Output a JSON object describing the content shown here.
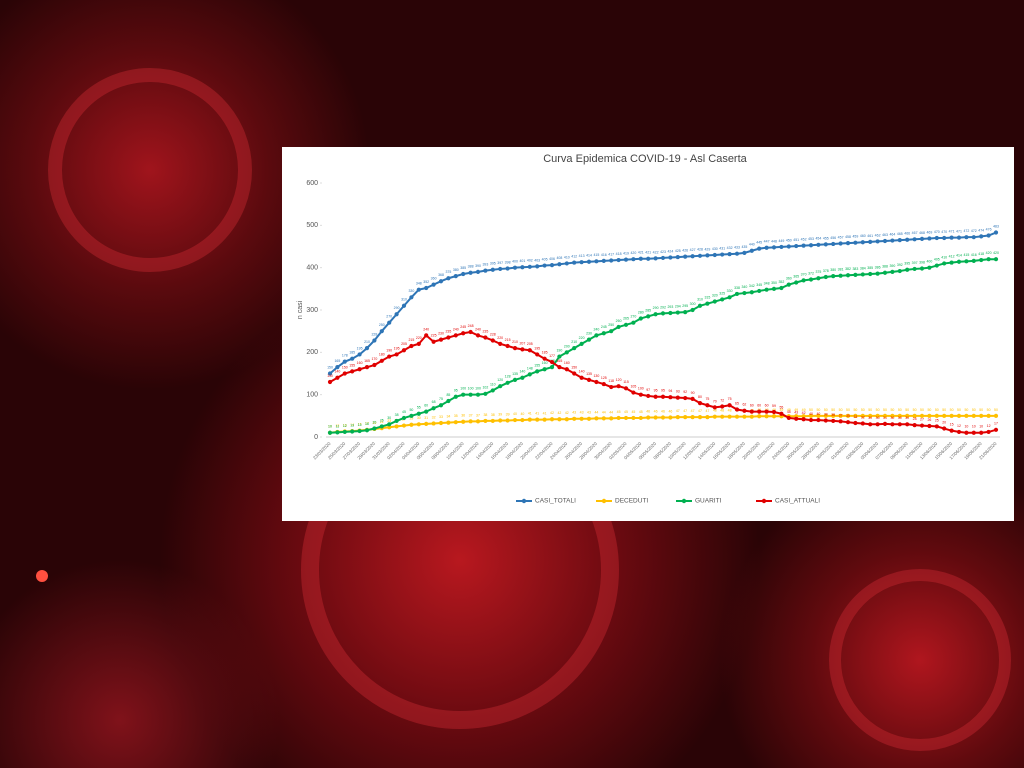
{
  "chart_data": {
    "type": "line",
    "title": "Curva Epidemica COVID-19 - Asl Caserta",
    "y_label": "n casi",
    "categories": [
      "23/03/2020",
      null,
      "25/03/2020",
      null,
      "27/03/2020",
      null,
      "29/03/2020",
      null,
      "31/03/2020",
      null,
      "02/04/2020",
      null,
      "04/04/2020",
      null,
      "06/04/2020",
      null,
      "08/04/2020",
      null,
      "10/04/2020",
      null,
      "12/04/2020",
      null,
      "14/04/2020",
      null,
      "16/04/2020",
      null,
      "18/04/2020",
      null,
      "20/04/2020",
      null,
      "22/04/2020",
      null,
      "24/04/2020",
      null,
      "26/04/2020",
      null,
      "28/04/2020",
      null,
      "30/04/2020",
      null,
      "02/05/2020",
      null,
      "04/05/2020",
      null,
      "06/05/2020",
      null,
      "08/05/2020",
      null,
      "10/05/2020",
      null,
      "12/05/2020",
      null,
      "14/05/2020",
      null,
      "16/05/2020",
      null,
      "18/05/2020",
      null,
      "20/05/2020",
      null,
      "22/05/2020",
      null,
      "24/05/2020",
      null,
      "26/05/2020",
      null,
      "28/05/2020",
      null,
      "30/05/2020",
      null,
      "01/06/2020",
      null,
      "03/06/2020",
      null,
      "05/06/2020",
      null,
      "07/06/2020",
      null,
      "09/06/2020",
      null,
      "11/06/2020",
      null,
      "13/06/2020",
      null,
      "15/06/2020",
      null,
      "17/06/2020",
      null,
      "19/06/2020",
      null,
      "21/06/2020"
    ],
    "series": [
      {
        "name": "CASI_TOTALI",
        "color": "#2e75b6",
        "values": [
          150,
          165,
          178,
          185,
          195,
          210,
          228,
          250,
          270,
          290,
          310,
          330,
          348,
          352,
          360,
          368,
          375,
          380,
          385,
          388,
          390,
          393,
          395,
          397,
          398,
          400,
          401,
          402,
          403,
          405,
          406,
          408,
          410,
          412,
          413,
          414,
          415,
          416,
          417,
          418,
          419,
          420,
          421,
          421,
          422,
          423,
          424,
          425,
          426,
          427,
          428,
          429,
          430,
          431,
          432,
          433,
          435,
          440,
          445,
          447,
          448,
          449,
          450,
          451,
          452,
          453,
          454,
          455,
          456,
          457,
          458,
          459,
          460,
          461,
          462,
          463,
          464,
          465,
          466,
          467,
          468,
          469,
          470,
          470,
          471,
          471,
          472,
          472,
          474,
          476,
          483
        ]
      },
      {
        "name": "DECEDUTI",
        "color": "#ffc000",
        "values": [
          10,
          12,
          13,
          14,
          15,
          17,
          19,
          21,
          23,
          25,
          27,
          29,
          30,
          31,
          32,
          33,
          34,
          35,
          36,
          37,
          37,
          38,
          38,
          39,
          39,
          40,
          40,
          41,
          41,
          41,
          42,
          42,
          42,
          43,
          43,
          43,
          44,
          44,
          44,
          45,
          45,
          45,
          45,
          46,
          46,
          46,
          46,
          47,
          47,
          47,
          47,
          47,
          48,
          48,
          48,
          48,
          48,
          48,
          49,
          49,
          49,
          49,
          49,
          49,
          49,
          50,
          50,
          50,
          50,
          50,
          50,
          50,
          50,
          50,
          50,
          50,
          50,
          50,
          50,
          50,
          50,
          50,
          50,
          50,
          50,
          50,
          50,
          50,
          50,
          50,
          50
        ]
      },
      {
        "name": "GUARITI",
        "color": "#00b050",
        "values": [
          10,
          11,
          12,
          13,
          14,
          16,
          20,
          25,
          30,
          38,
          45,
          50,
          55,
          60,
          68,
          75,
          85,
          95,
          100,
          100,
          100,
          102,
          110,
          120,
          128,
          135,
          140,
          148,
          155,
          160,
          165,
          190,
          200,
          210,
          220,
          230,
          240,
          245,
          250,
          260,
          265,
          270,
          280,
          285,
          290,
          292,
          293,
          294,
          295,
          300,
          310,
          315,
          320,
          325,
          330,
          338,
          340,
          342,
          345,
          348,
          350,
          352,
          360,
          365,
          370,
          372,
          375,
          378,
          380,
          381,
          382,
          383,
          384,
          385,
          386,
          388,
          390,
          392,
          395,
          397,
          398,
          400,
          405,
          410,
          412,
          414,
          415,
          416,
          418,
          420,
          420
        ]
      },
      {
        "name": "CASI_ATTUALI",
        "color": "#e00000",
        "values": [
          130,
          140,
          150,
          155,
          160,
          165,
          170,
          180,
          190,
          195,
          205,
          215,
          220,
          240,
          225,
          230,
          235,
          240,
          245,
          248,
          240,
          235,
          228,
          220,
          215,
          210,
          207,
          205,
          195,
          185,
          177,
          165,
          160,
          150,
          140,
          135,
          130,
          125,
          118,
          120,
          115,
          105,
          100,
          97,
          95,
          95,
          94,
          93,
          92,
          90,
          80,
          75,
          70,
          72,
          75,
          65,
          62,
          60,
          60,
          60,
          59,
          55,
          45,
          43,
          42,
          40,
          40,
          39,
          38,
          37,
          35,
          33,
          32,
          30,
          30,
          31,
          30,
          30,
          30,
          28,
          27,
          26,
          25,
          20,
          15,
          12,
          10,
          10,
          10,
          12,
          17
        ]
      }
    ],
    "ylim": [
      0,
      600
    ],
    "yticks": [
      0,
      100,
      200,
      300,
      400,
      500,
      600
    ],
    "grid": false,
    "legend": "bottom"
  }
}
